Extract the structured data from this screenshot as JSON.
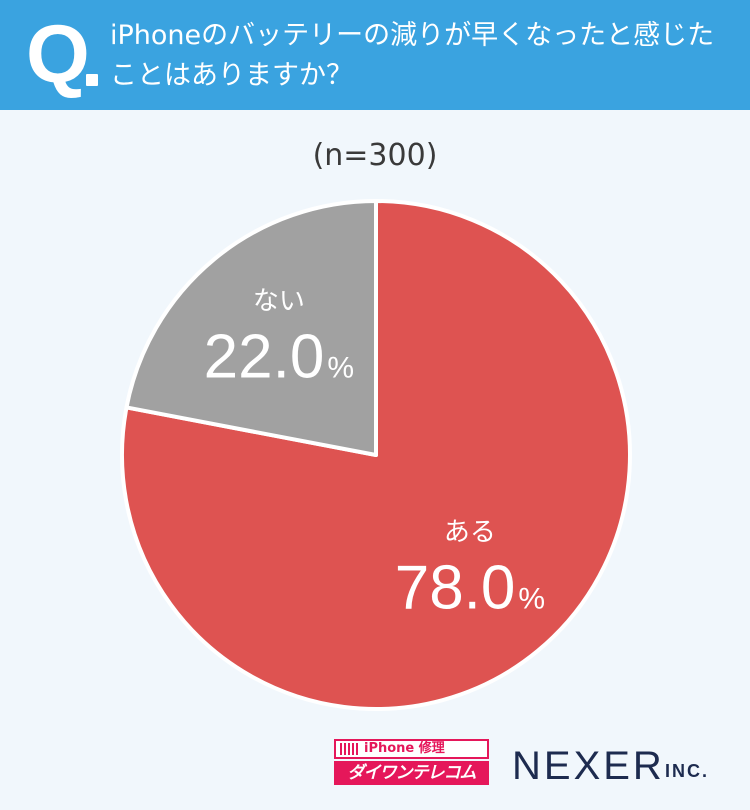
{
  "question": {
    "mark": "Q",
    "lines": [
      "iPhoneのバッテリーの減りが早くなったと感じた",
      "ことはありますか？"
    ]
  },
  "sample_label": "(n=300)",
  "chart_data": {
    "type": "pie",
    "categories": [
      "ある",
      "ない"
    ],
    "values": [
      78.0,
      22.0
    ],
    "unit": "%",
    "labels": [
      "78.0",
      "22.0"
    ],
    "colors": [
      "#de5351",
      "#a1a1a1"
    ],
    "start": "12 o'clock",
    "direction": "clockwise"
  },
  "footer": {
    "sponsor_top": "iPhone 修理",
    "sponsor_bottom": "ダイワンテレコム",
    "company": "NEXER",
    "company_suffix": "INC."
  }
}
